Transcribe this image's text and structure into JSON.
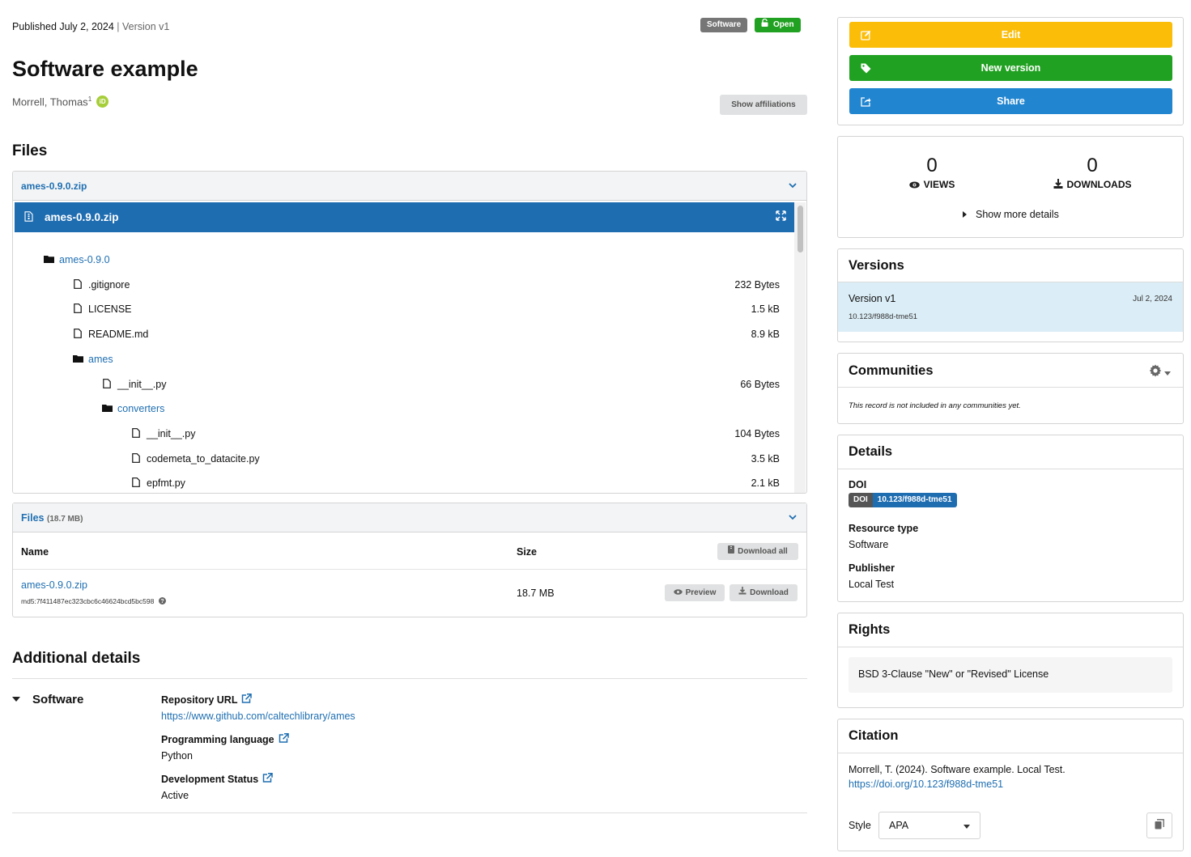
{
  "header": {
    "published": "Published July 2, 2024",
    "separator": "|",
    "version": "Version v1",
    "badge_type": "Software",
    "badge_access": "Open",
    "title": "Software example",
    "author": "Morrell, Thomas",
    "author_affiliation_mark": "1",
    "orcid_icon": "iD",
    "show_affiliations": "Show affiliations"
  },
  "files_section": {
    "heading": "Files",
    "preview_filename": "ames-0.9.0.zip",
    "preview_bar_filename": "ames-0.9.0.zip",
    "tree": [
      {
        "name": "ames-0.9.0",
        "type": "folder",
        "size": ""
      },
      {
        "name": ".gitignore",
        "type": "file",
        "size": "232 Bytes"
      },
      {
        "name": "LICENSE",
        "type": "file",
        "size": "1.5 kB"
      },
      {
        "name": "README.md",
        "type": "file",
        "size": "8.9 kB"
      },
      {
        "name": "ames",
        "type": "folder",
        "size": ""
      },
      {
        "name": "__init__.py",
        "type": "file",
        "size": "66 Bytes"
      },
      {
        "name": "converters",
        "type": "folder",
        "size": ""
      },
      {
        "name": "__init__.py",
        "type": "file",
        "size": "104 Bytes"
      },
      {
        "name": "codemeta_to_datacite.py",
        "type": "file",
        "size": "3.5 kB"
      },
      {
        "name": "epfmt.py",
        "type": "file",
        "size": "2.1 kB"
      }
    ],
    "table_title": "Files",
    "table_total": "(18.7 MB)",
    "col_name": "Name",
    "col_size": "Size",
    "download_all": "Download all",
    "file_link": "ames-0.9.0.zip",
    "file_md5": "md5:7f411487ec323cbc6c46624bcd5bc598",
    "file_size": "18.7 MB",
    "preview_btn": "Preview",
    "download_btn": "Download"
  },
  "additional": {
    "heading": "Additional details",
    "group": "Software",
    "repo_label": "Repository URL",
    "repo_value": "https://www.github.com/caltechlibrary/ames",
    "lang_label": "Programming language",
    "lang_value": "Python",
    "status_label": "Development Status",
    "status_value": "Active"
  },
  "sidebar": {
    "edit": "Edit",
    "new_version": "New version",
    "share": "Share",
    "views_count": "0",
    "views_label": "VIEWS",
    "downloads_count": "0",
    "downloads_label": "DOWNLOADS",
    "show_more": "Show more details",
    "versions_title": "Versions",
    "version_name": "Version v1",
    "version_date": "Jul 2, 2024",
    "version_doi": "10.123/f988d-tme51",
    "communities_title": "Communities",
    "communities_empty": "This record is not included in any communities yet.",
    "details_title": "Details",
    "doi_label": "DOI",
    "doi_badge_prefix": "DOI",
    "doi_value": "10.123/f988d-tme51",
    "resource_type_label": "Resource type",
    "resource_type_value": "Software",
    "publisher_label": "Publisher",
    "publisher_value": "Local Test",
    "rights_title": "Rights",
    "license": "BSD 3-Clause \"New\" or \"Revised\" License",
    "citation_title": "Citation",
    "citation_text": "Morrell, T. (2024). Software example. Local Test.",
    "citation_link": "https://doi.org/10.123/f988d-tme51",
    "style_label": "Style",
    "style_value": "APA"
  },
  "colors": {
    "accent_blue": "#1f6db1",
    "edit_yellow": "#fbbd08",
    "new_version_green": "#21a121",
    "open_green": "#21a121",
    "version_highlight": "#dbedf6"
  },
  "icons": [
    "lock-icon",
    "orcid-icon",
    "chevron-down-icon",
    "file-zip-icon",
    "expand-icon",
    "folder-icon",
    "file-icon",
    "download-icon",
    "eye-icon",
    "caret-right-icon",
    "gear-icon",
    "pencil-icon",
    "tag-icon",
    "share-icon",
    "external-link-icon",
    "copy-icon",
    "question-icon"
  ]
}
